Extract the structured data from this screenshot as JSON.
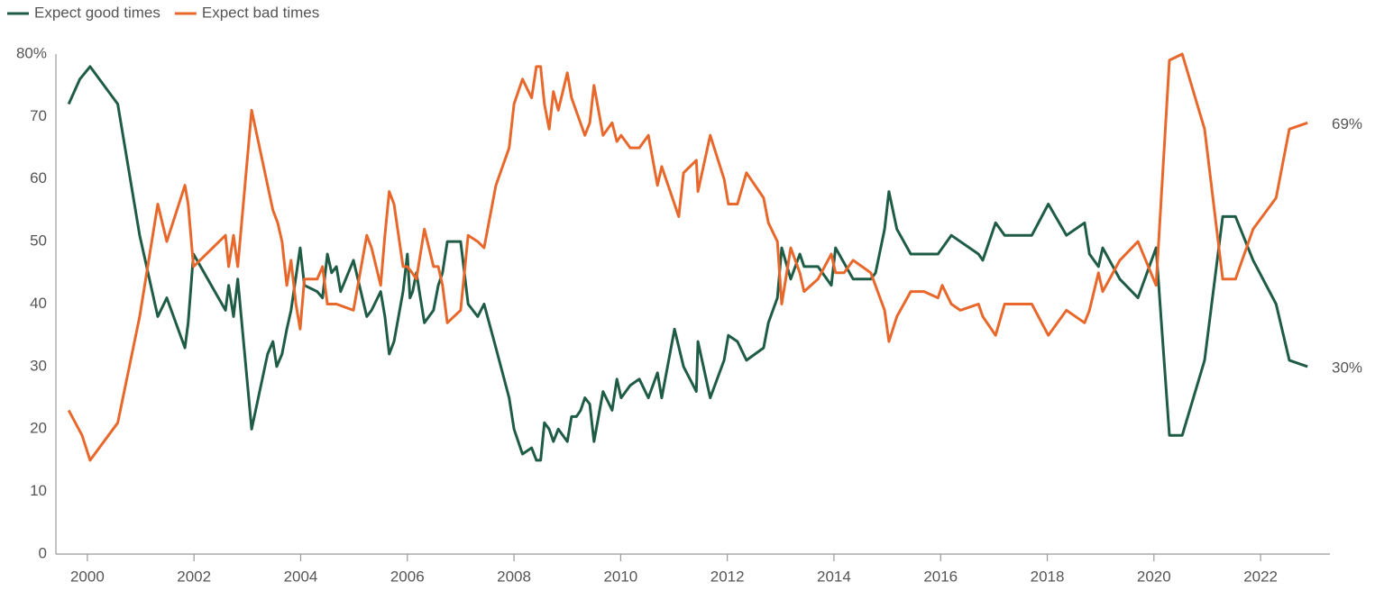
{
  "chart_data": {
    "type": "line",
    "xlim": [
      1999.41,
      2023.3
    ],
    "xticks": [
      2000,
      2002,
      2004,
      2006,
      2008,
      2010,
      2012,
      2014,
      2016,
      2018,
      2020,
      2022
    ],
    "ylim": [
      0,
      80
    ],
    "yticks": [
      0,
      10,
      20,
      30,
      40,
      50,
      60,
      70,
      {
        "value": 80,
        "label": "80%"
      }
    ],
    "legend": "top-left",
    "series": [
      {
        "name": "Expect good times",
        "color": "#1f5c45",
        "end_label": "30%",
        "x": [
          1999.65,
          1999.86,
          2000.05,
          2000.57,
          2000.98,
          2001.32,
          2001.49,
          2001.83,
          2001.89,
          2001.99,
          2002.59,
          2002.65,
          2002.74,
          2002.82,
          2003.08,
          2003.38,
          2003.48,
          2003.55,
          2003.65,
          2003.74,
          2003.82,
          2003.99,
          2004.07,
          2004.31,
          2004.41,
          2004.5,
          2004.58,
          2004.67,
          2004.75,
          2004.99,
          2005.24,
          2005.33,
          2005.5,
          2005.58,
          2005.66,
          2005.75,
          2005.92,
          2006.0,
          2006.05,
          2006.1,
          2006.17,
          2006.32,
          2006.49,
          2006.58,
          2006.66,
          2006.75,
          2007.0,
          2007.14,
          2007.32,
          2007.44,
          2007.66,
          2007.91,
          2008.0,
          2008.16,
          2008.33,
          2008.42,
          2008.5,
          2008.57,
          2008.66,
          2008.74,
          2008.83,
          2009.0,
          2009.08,
          2009.17,
          2009.25,
          2009.33,
          2009.42,
          2009.5,
          2009.67,
          2009.84,
          2009.93,
          2010.01,
          2010.18,
          2010.35,
          2010.52,
          2010.69,
          2010.77,
          2011.01,
          2011.18,
          2011.42,
          2011.45,
          2011.68,
          2011.94,
          2012.02,
          2012.19,
          2012.36,
          2012.68,
          2012.77,
          2012.94,
          2013.02,
          2013.19,
          2013.36,
          2013.44,
          2013.7,
          2013.95,
          2014.03,
          2014.36,
          2014.69,
          2014.78,
          2014.95,
          2015.03,
          2015.18,
          2015.44,
          2015.95,
          2016.2,
          2016.71,
          2016.79,
          2017.03,
          2017.2,
          2017.71,
          2018.02,
          2018.36,
          2018.7,
          2018.79,
          2018.96,
          2019.04,
          2019.36,
          2019.7,
          2020.04,
          2020.29,
          2020.53,
          2020.95,
          2021.29,
          2021.53,
          2021.86,
          2022.29,
          2022.54,
          2022.88
        ],
        "values": [
          72,
          76,
          78,
          72,
          51,
          38,
          41,
          33,
          37,
          48,
          39,
          43,
          38,
          44,
          20,
          32,
          34,
          30,
          32,
          36,
          39,
          49,
          43,
          42,
          41,
          48,
          45,
          46,
          42,
          47,
          38,
          39,
          42,
          38,
          32,
          34,
          42,
          48,
          41,
          42,
          45,
          37,
          39,
          43,
          45,
          50,
          50,
          40,
          38,
          40,
          33,
          25,
          20,
          16,
          17,
          15,
          15,
          21,
          20,
          18,
          20,
          18,
          22,
          22,
          23,
          25,
          24,
          18,
          26,
          23,
          28,
          25,
          27,
          28,
          25,
          29,
          25,
          36,
          30,
          26,
          34,
          25,
          31,
          35,
          34,
          31,
          33,
          37,
          41,
          49,
          44,
          48,
          46,
          46,
          43,
          49,
          44,
          44,
          45,
          52,
          58,
          52,
          48,
          48,
          51,
          48,
          47,
          53,
          51,
          51,
          56,
          51,
          53,
          48,
          46,
          49,
          44,
          41,
          49,
          19,
          19,
          31,
          54,
          54,
          47,
          40,
          31,
          30
        ]
      },
      {
        "name": "Expect bad times",
        "color": "#e8682c",
        "end_label": "69%",
        "x": [
          1999.65,
          1999.9,
          2000.05,
          2000.57,
          2000.98,
          2001.32,
          2001.49,
          2001.83,
          2001.89,
          2001.99,
          2002.59,
          2002.65,
          2002.74,
          2002.82,
          2003.08,
          2003.48,
          2003.57,
          2003.65,
          2003.74,
          2003.82,
          2003.91,
          2003.99,
          2004.07,
          2004.31,
          2004.41,
          2004.5,
          2004.67,
          2004.99,
          2005.24,
          2005.33,
          2005.5,
          2005.58,
          2005.66,
          2005.75,
          2005.92,
          2006.0,
          2006.09,
          2006.17,
          2006.32,
          2006.49,
          2006.58,
          2006.66,
          2006.75,
          2007.0,
          2007.14,
          2007.32,
          2007.44,
          2007.66,
          2007.91,
          2008.0,
          2008.16,
          2008.33,
          2008.42,
          2008.5,
          2008.57,
          2008.66,
          2008.74,
          2008.83,
          2009.0,
          2009.08,
          2009.33,
          2009.42,
          2009.5,
          2009.67,
          2009.84,
          2009.93,
          2010.01,
          2010.18,
          2010.35,
          2010.52,
          2010.69,
          2010.77,
          2011.09,
          2011.18,
          2011.42,
          2011.45,
          2011.68,
          2011.94,
          2012.02,
          2012.19,
          2012.36,
          2012.68,
          2012.77,
          2012.94,
          2013.02,
          2013.19,
          2013.36,
          2013.44,
          2013.7,
          2013.95,
          2014.03,
          2014.19,
          2014.36,
          2014.69,
          2014.95,
          2015.03,
          2015.18,
          2015.44,
          2015.69,
          2015.95,
          2016.03,
          2016.2,
          2016.37,
          2016.71,
          2016.79,
          2017.03,
          2017.2,
          2017.71,
          2018.02,
          2018.36,
          2018.7,
          2018.79,
          2018.96,
          2019.04,
          2019.36,
          2019.7,
          2020.04,
          2020.29,
          2020.53,
          2020.95,
          2021.29,
          2021.53,
          2021.86,
          2022.29,
          2022.54,
          2022.88
        ],
        "values": [
          23,
          19,
          15,
          21,
          38,
          56,
          50,
          59,
          56,
          46,
          51,
          46,
          51,
          46,
          71,
          55,
          53,
          50,
          43,
          47,
          40,
          36,
          44,
          44,
          46,
          40,
          40,
          39,
          51,
          49,
          43,
          51,
          58,
          56,
          46,
          46,
          45,
          44,
          52,
          46,
          46,
          43,
          37,
          39,
          51,
          50,
          49,
          59,
          65,
          72,
          76,
          73,
          78,
          78,
          72,
          68,
          74,
          71,
          77,
          73,
          67,
          69,
          75,
          67,
          69,
          66,
          67,
          65,
          65,
          67,
          59,
          62,
          54,
          61,
          63,
          58,
          67,
          60,
          56,
          56,
          61,
          57,
          53,
          50,
          40,
          49,
          45,
          42,
          44,
          48,
          45,
          45,
          47,
          45,
          39,
          34,
          38,
          42,
          42,
          41,
          43,
          40,
          39,
          40,
          38,
          35,
          40,
          40,
          35,
          39,
          37,
          39,
          45,
          42,
          47,
          50,
          43,
          79,
          80,
          68,
          44,
          44,
          52,
          57,
          68,
          69
        ]
      }
    ]
  }
}
